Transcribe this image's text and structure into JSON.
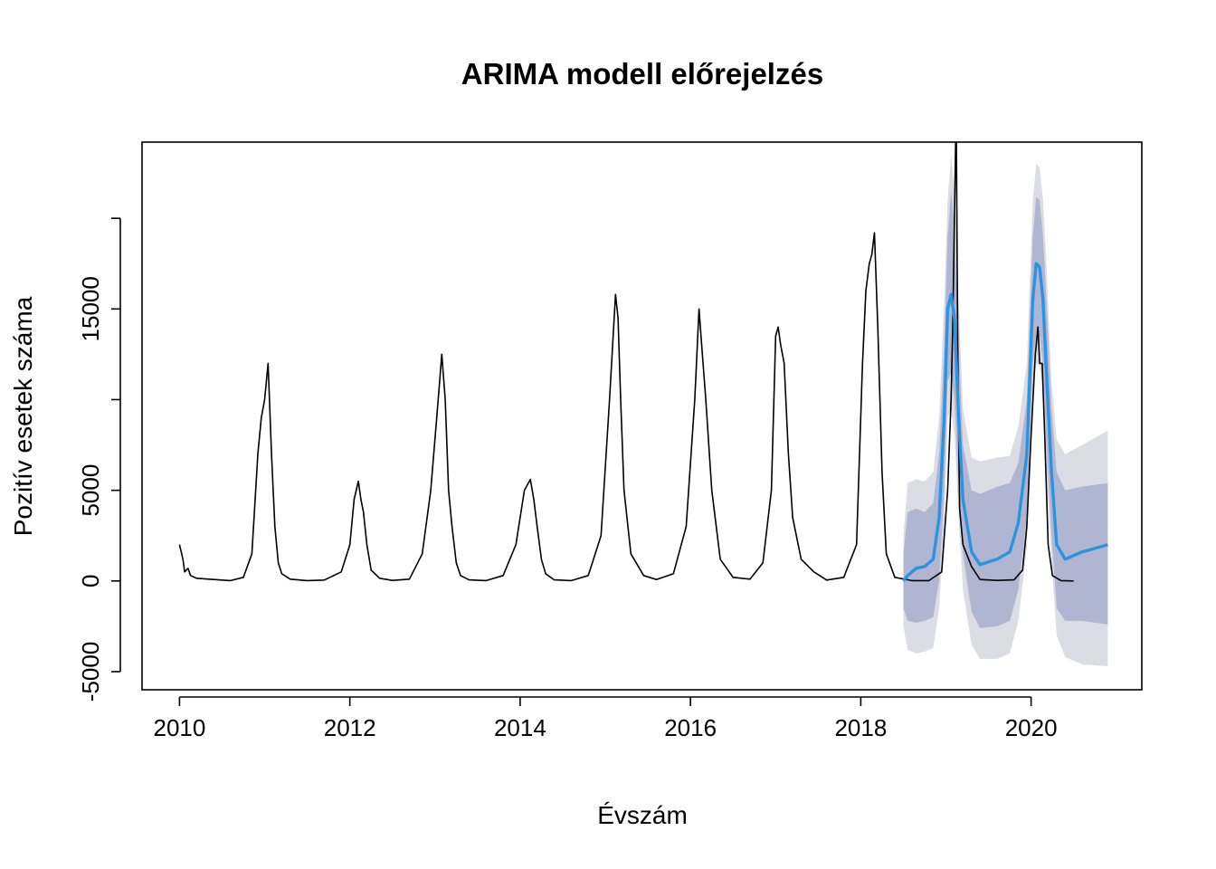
{
  "chart_data": {
    "type": "line",
    "title": "ARIMA modell előrejelzés",
    "xlabel": "Évszám",
    "ylabel": "Pozitív esetek száma",
    "xlim": [
      2009.56,
      2021.3
    ],
    "ylim": [
      -6000,
      24200
    ],
    "x_ticks": [
      2010,
      2012,
      2014,
      2016,
      2018,
      2020
    ],
    "x_tick_labels": [
      "2010",
      "2012",
      "2014",
      "2016",
      "2018",
      "2020"
    ],
    "y_ticks": [
      -5000,
      0,
      5000,
      10000,
      15000,
      20000
    ],
    "y_tick_labels": [
      "-5000",
      "0",
      "5000",
      "",
      "15000",
      ""
    ],
    "grid": false,
    "legend": "none",
    "colors": {
      "observed": "#000000",
      "forecast": "#2b93e0",
      "band_80": "#b0b6d2",
      "band_95": "#dcdce4"
    },
    "series": [
      {
        "role": "observed",
        "x": [
          2010.0,
          2010.04,
          2010.06,
          2010.1,
          2010.13,
          2010.2,
          2010.4,
          2010.6,
          2010.75,
          2010.85,
          2010.92,
          2010.96,
          2011.0,
          2011.04,
          2011.08,
          2011.12,
          2011.16,
          2011.2,
          2011.3,
          2011.5,
          2011.7,
          2011.9,
          2012.0,
          2012.05,
          2012.1,
          2012.13,
          2012.16,
          2012.2,
          2012.25,
          2012.35,
          2012.5,
          2012.7,
          2012.85,
          2012.95,
          2013.02,
          2013.08,
          2013.12,
          2013.16,
          2013.2,
          2013.25,
          2013.3,
          2013.4,
          2013.6,
          2013.8,
          2013.95,
          2014.05,
          2014.12,
          2014.16,
          2014.2,
          2014.25,
          2014.3,
          2014.4,
          2014.6,
          2014.8,
          2014.95,
          2015.05,
          2015.12,
          2015.15,
          2015.18,
          2015.22,
          2015.3,
          2015.45,
          2015.6,
          2015.8,
          2015.95,
          2016.05,
          2016.1,
          2016.14,
          2016.18,
          2016.25,
          2016.35,
          2016.5,
          2016.7,
          2016.85,
          2016.95,
          2017.0,
          2017.03,
          2017.06,
          2017.1,
          2017.15,
          2017.2,
          2017.3,
          2017.45,
          2017.6,
          2017.8,
          2017.95,
          2018.02,
          2018.06,
          2018.1,
          2018.13,
          2018.16,
          2018.2,
          2018.25,
          2018.3,
          2018.4,
          2018.6,
          2018.8,
          2018.95,
          2019.02,
          2019.06,
          2019.08,
          2019.1,
          2019.12,
          2019.14,
          2019.16,
          2019.2,
          2019.3,
          2019.4,
          2019.6,
          2019.8,
          2019.9,
          2019.95,
          2020.0,
          2020.05,
          2020.08,
          2020.1,
          2020.13,
          2020.16,
          2020.2,
          2020.25,
          2020.35,
          2020.5
        ],
        "y": [
          2000,
          1200,
          500,
          700,
          300,
          150,
          80,
          20,
          200,
          1500,
          7000,
          9000,
          10000,
          12000,
          7000,
          3000,
          1000,
          400,
          100,
          20,
          50,
          500,
          2000,
          4500,
          5500,
          4500,
          3800,
          2000,
          600,
          150,
          30,
          100,
          1500,
          5000,
          9000,
          12500,
          10000,
          5000,
          3000,
          1000,
          300,
          60,
          20,
          300,
          2000,
          5000,
          5600,
          4500,
          3000,
          1200,
          400,
          60,
          20,
          300,
          2500,
          10000,
          15800,
          14500,
          10000,
          5000,
          1500,
          300,
          80,
          400,
          3000,
          10000,
          15000,
          12500,
          10000,
          5000,
          1200,
          200,
          100,
          1000,
          5000,
          13500,
          14000,
          13000,
          12000,
          7000,
          3500,
          1200,
          500,
          50,
          200,
          2000,
          12000,
          16000,
          17500,
          18000,
          19200,
          14000,
          6000,
          1500,
          200,
          20,
          20,
          500,
          5000,
          10000,
          14000,
          20000,
          26000,
          12000,
          4000,
          2000,
          800,
          80,
          30,
          60,
          600,
          3000,
          8000,
          12500,
          14000,
          12000,
          12000,
          8000,
          2000,
          300,
          20,
          0
        ]
      },
      {
        "role": "forecast",
        "x": [
          2018.5,
          2018.55,
          2018.65,
          2018.75,
          2018.85,
          2018.92,
          2018.98,
          2019.02,
          2019.06,
          2019.1,
          2019.15,
          2019.2,
          2019.3,
          2019.4,
          2019.6,
          2019.75,
          2019.85,
          2019.95,
          2020.02,
          2020.06,
          2020.1,
          2020.14,
          2020.18,
          2020.24,
          2020.3,
          2020.4,
          2020.6,
          2020.9
        ],
        "y": [
          0,
          300,
          700,
          800,
          1200,
          3500,
          9000,
          15000,
          15800,
          14500,
          9000,
          4500,
          1600,
          900,
          1200,
          1600,
          3200,
          7000,
          15500,
          17500,
          17300,
          15500,
          11500,
          6000,
          2000,
          1200,
          1600,
          2000
        ]
      },
      {
        "role": "band_80_upper",
        "y": [
          1500,
          3800,
          4000,
          3800,
          4300,
          7000,
          13000,
          19000,
          21500,
          19500,
          13000,
          7500,
          5000,
          4800,
          5200,
          5400,
          6500,
          10000,
          19000,
          21200,
          21000,
          19000,
          15500,
          9500,
          6000,
          5000,
          5200,
          5400
        ]
      },
      {
        "role": "band_80_lower",
        "y": [
          -1500,
          -2200,
          -2300,
          -2200,
          -2000,
          0,
          5000,
          11000,
          11500,
          10000,
          5000,
          1500,
          -1700,
          -2600,
          -2500,
          -2200,
          -500,
          3500,
          12000,
          13500,
          13500,
          12000,
          7500,
          2500,
          -1500,
          -2200,
          -2200,
          -2400
        ]
      },
      {
        "role": "band_95_upper",
        "y": [
          2500,
          5400,
          5600,
          5500,
          6000,
          9000,
          15500,
          21000,
          23500,
          21500,
          15500,
          9500,
          6800,
          6600,
          6800,
          6900,
          8500,
          12000,
          21000,
          23000,
          22800,
          21000,
          17500,
          11000,
          7800,
          7000,
          7500,
          8300
        ]
      },
      {
        "role": "band_95_lower",
        "y": [
          -2500,
          -3800,
          -4000,
          -3900,
          -3700,
          -1500,
          3000,
          9000,
          9500,
          8000,
          3500,
          -500,
          -3500,
          -4300,
          -4300,
          -4000,
          -2200,
          1800,
          10500,
          12000,
          11800,
          10500,
          6000,
          1000,
          -3000,
          -4200,
          -4600,
          -4700
        ]
      }
    ]
  }
}
